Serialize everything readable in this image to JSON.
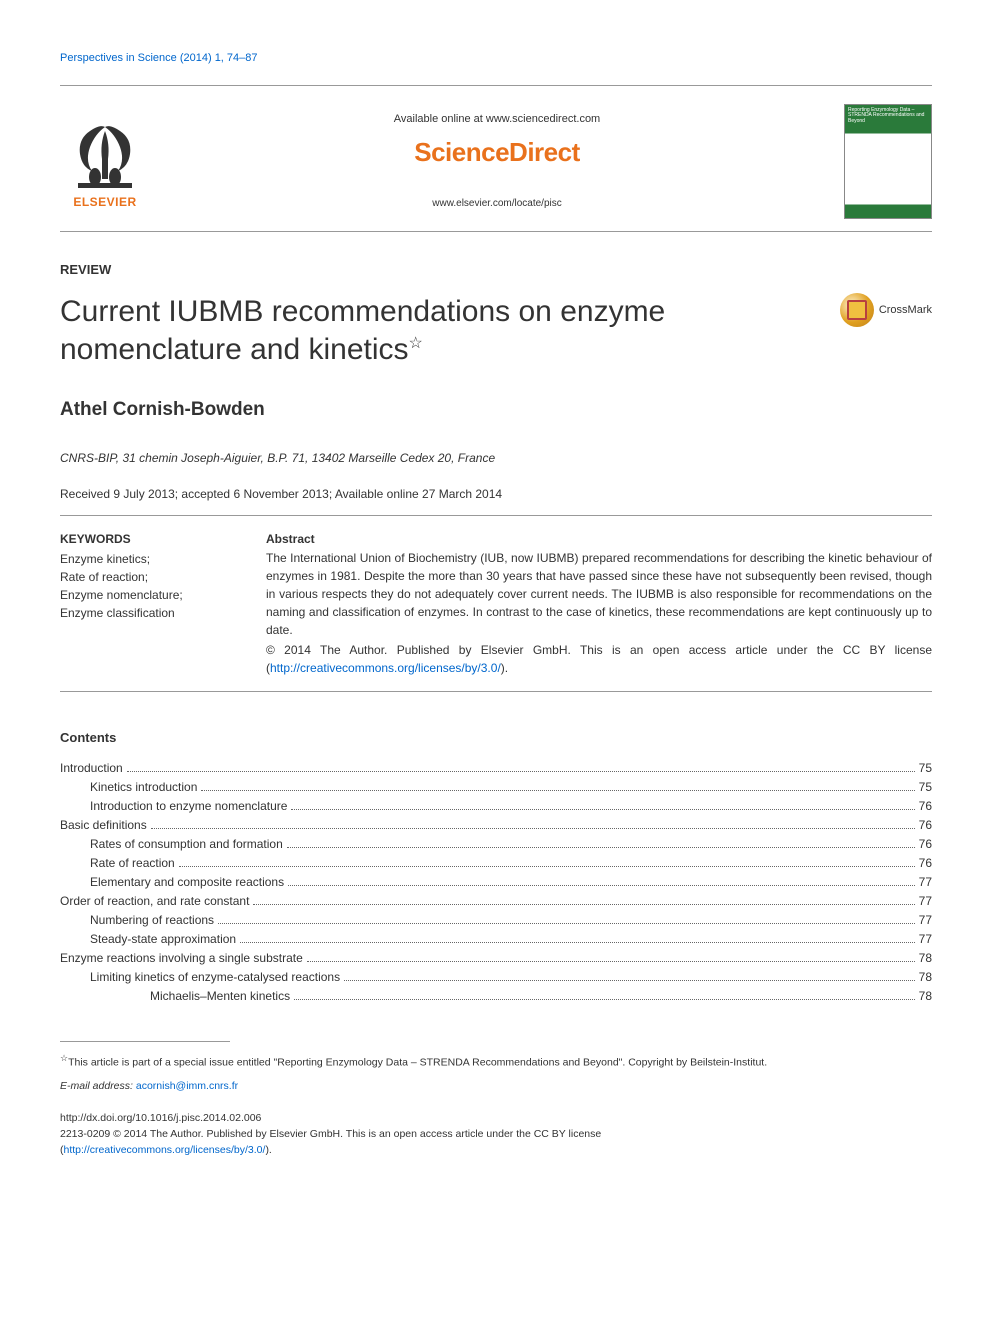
{
  "citation": {
    "journal_link": "Perspectives in Science",
    "cite_rest": " (2014) 1, 74–87"
  },
  "header": {
    "available_text": "Available online at ",
    "available_url": "www.sciencedirect.com",
    "sciencedirect_logo_text": "ScienceDirect",
    "journal_url": "www.elsevier.com/locate/pisc",
    "elsevier_label": "ELSEVIER",
    "cover_title": "Reporting Enzymology Data – STRENDA Recommendations and Beyond"
  },
  "article_type": "REVIEW",
  "title_main": "Current IUBMB recommendations on enzyme nomenclature and kinetics",
  "title_star": "☆",
  "crossmark_label": "CrossMark",
  "author": "Athel Cornish-Bowden",
  "affiliation": "CNRS-BIP, 31 chemin Joseph-Aiguier, B.P. 71, 13402 Marseille Cedex 20, France",
  "history": "Received 9 July 2013; accepted 6 November 2013; Available online 27 March 2014",
  "keywords": {
    "heading": "KEYWORDS",
    "items": [
      "Enzyme kinetics;",
      "Rate of reaction;",
      "Enzyme nomenclature;",
      "Enzyme classification"
    ]
  },
  "abstract": {
    "heading": "Abstract",
    "body": "The International Union of Biochemistry (IUB, now IUBMB) prepared recommendations for describing the kinetic behaviour of enzymes in 1981. Despite the more than 30 years that have passed since these have not subsequently been revised, though in various respects they do not adequately cover current needs. The IUBMB is also responsible for recommendations on the naming and classification of enzymes. In contrast to the case of kinetics, these recommendations are kept continuously up to date.",
    "copyright": "© 2014 The Author. Published by Elsevier GmbH. This is an open access article under the CC BY license (",
    "license_url": "http://creativecommons.org/licenses/by/3.0/",
    "copyright_close": ")."
  },
  "contents_heading": "Contents",
  "toc": [
    {
      "level": 1,
      "label": "Introduction",
      "page": "75"
    },
    {
      "level": 2,
      "label": "Kinetics introduction",
      "page": "75"
    },
    {
      "level": 2,
      "label": "Introduction to enzyme nomenclature",
      "page": "76"
    },
    {
      "level": 1,
      "label": "Basic definitions",
      "page": "76"
    },
    {
      "level": 2,
      "label": "Rates of consumption and formation",
      "page": "76"
    },
    {
      "level": 2,
      "label": "Rate of reaction",
      "page": "76"
    },
    {
      "level": 2,
      "label": "Elementary and composite reactions",
      "page": "77"
    },
    {
      "level": 1,
      "label": "Order of reaction, and rate constant",
      "page": "77"
    },
    {
      "level": 2,
      "label": "Numbering of reactions",
      "page": "77"
    },
    {
      "level": 2,
      "label": "Steady-state approximation",
      "page": "77"
    },
    {
      "level": 1,
      "label": "Enzyme reactions involving a single substrate",
      "page": "78"
    },
    {
      "level": 2,
      "label": "Limiting kinetics of enzyme-catalysed reactions",
      "page": "78"
    },
    {
      "level": 3,
      "label": "Michaelis–Menten kinetics",
      "page": "78"
    }
  ],
  "footnote": {
    "star": "☆",
    "text": "This article is part of a special issue entitled \"Reporting Enzymology Data – STRENDA Recommendations and Beyond\". Copyright by Beilstein-Institut."
  },
  "email": {
    "label": "E-mail address: ",
    "address": "acornish@imm.cnrs.fr"
  },
  "doi": "http://dx.doi.org/10.1016/j.pisc.2014.02.006",
  "bottom_copyright": {
    "text": "2213-0209 © 2014 The Author. Published by Elsevier GmbH. This is an open access article under the CC BY license",
    "open": "(",
    "url": "http://creativecommons.org/licenses/by/3.0/",
    "close": ")."
  },
  "colors": {
    "link": "#0066cc",
    "elsevier_orange": "#e9711c",
    "rule": "#999999",
    "text": "#333333",
    "cover_green": "#2a7a3a"
  },
  "fontsizes": {
    "title": 30,
    "author": 19,
    "body": 13,
    "small": 12,
    "footnote": 10.5
  }
}
